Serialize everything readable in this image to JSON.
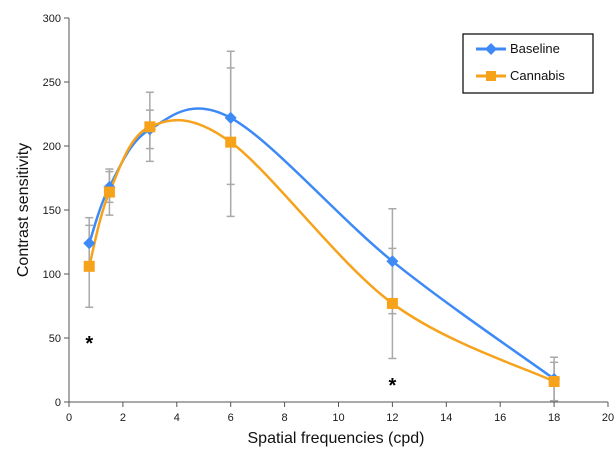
{
  "colors": {
    "baseline": "#3d8af7",
    "cannabis": "#f7a21b",
    "error_bar": "#a9a9a9",
    "axis": "#555555"
  },
  "chart_data": {
    "type": "line",
    "title": "",
    "xlabel": "Spatial frequencies (cpd)",
    "ylabel": "Contrast sensitivity",
    "xlim": [
      0,
      20
    ],
    "ylim": [
      0,
      300
    ],
    "xticks": [
      "0",
      "2",
      "4",
      "6",
      "8",
      "10",
      "12",
      "14",
      "16",
      "18",
      "20"
    ],
    "yticks": [
      "0",
      "50",
      "100",
      "150",
      "200",
      "250",
      "300"
    ],
    "grid": false,
    "legend_position": "top-right",
    "smooth": true,
    "series": [
      {
        "name": "Baseline",
        "color": "#3d8af7",
        "marker": "diamond",
        "x": [
          0.75,
          1.5,
          3,
          6,
          12,
          18
        ],
        "y": [
          124,
          168,
          213,
          222,
          110,
          18
        ],
        "err": [
          20,
          12,
          15,
          52,
          41,
          17
        ]
      },
      {
        "name": "Cannabis",
        "color": "#f7a21b",
        "marker": "square",
        "x": [
          0.75,
          1.5,
          3,
          6,
          12,
          18
        ],
        "y": [
          106,
          164,
          215,
          203,
          77,
          16
        ],
        "err": [
          32,
          18,
          27,
          58,
          43,
          15
        ]
      }
    ],
    "annotations": [
      {
        "text": "*",
        "x": 0.75,
        "y": 50
      },
      {
        "text": "*",
        "x": 12,
        "y": 17
      }
    ]
  }
}
